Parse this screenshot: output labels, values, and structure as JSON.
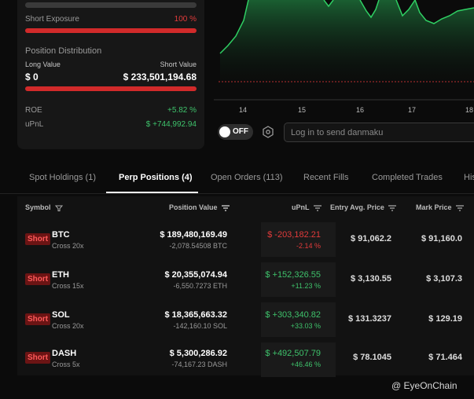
{
  "exposure": {
    "short_exposure_label": "Short Exposure",
    "short_exposure_value": "100 %",
    "position_distribution_label": "Position Distribution",
    "long_value_label": "Long Value",
    "short_value_label": "Short Value",
    "long_value": "$ 0",
    "short_value": "$ 233,501,194.68",
    "roe_label": "ROE",
    "roe_value": "+5.82 %",
    "upnl_label": "uPnL",
    "upnl_value": "$ +744,992.94"
  },
  "chart": {
    "x_ticks": [
      "14",
      "15",
      "16",
      "17",
      "18"
    ],
    "line_color": "#2fcf63"
  },
  "controls": {
    "toggle_label": "OFF",
    "danmaku_placeholder": "Log in to send danmaku"
  },
  "tabs": [
    {
      "label": "Spot Holdings (1)"
    },
    {
      "label": "Perp Positions (4)"
    },
    {
      "label": "Open Orders (113)"
    },
    {
      "label": "Recent Fills"
    },
    {
      "label": "Completed Trades"
    },
    {
      "label": "His"
    }
  ],
  "table": {
    "headers": {
      "symbol": "Symbol",
      "position_value": "Position Value",
      "upnl": "uPnL",
      "entry": "Entry Avg. Price",
      "mark": "Mark Price"
    },
    "rows": [
      {
        "side": "Short",
        "symbol": "BTC",
        "leverage": "Cross 20x",
        "position_value": "$ 189,480,169.49",
        "size": "-2,078.54508 BTC",
        "upnl": "$ -203,182.21",
        "upnl_pct": "-2.14 %",
        "upnl_color": "#e23b3b",
        "entry": "$ 91,062.2",
        "mark": "$ 91,160.0"
      },
      {
        "side": "Short",
        "symbol": "ETH",
        "leverage": "Cross 15x",
        "position_value": "$ 20,355,074.94",
        "size": "-6,550.7273 ETH",
        "upnl": "$ +152,326.55",
        "upnl_pct": "+11.23 %",
        "upnl_color": "#3ec26b",
        "entry": "$ 3,130.55",
        "mark": "$ 3,107.3"
      },
      {
        "side": "Short",
        "symbol": "SOL",
        "leverage": "Cross 20x",
        "position_value": "$ 18,365,663.32",
        "size": "-142,160.10 SOL",
        "upnl": "$ +303,340.82",
        "upnl_pct": "+33.03 %",
        "upnl_color": "#3ec26b",
        "entry": "$ 131.3237",
        "mark": "$ 129.19"
      },
      {
        "side": "Short",
        "symbol": "DASH",
        "leverage": "Cross 5x",
        "position_value": "$ 5,300,286.92",
        "size": "-74,167.23 DASH",
        "upnl": "$ +492,507.79",
        "upnl_pct": "+46.46 %",
        "upnl_color": "#3ec26b",
        "entry": "$ 78.1045",
        "mark": "$ 71.464"
      }
    ]
  },
  "watermark": "@ EyeOnChain"
}
